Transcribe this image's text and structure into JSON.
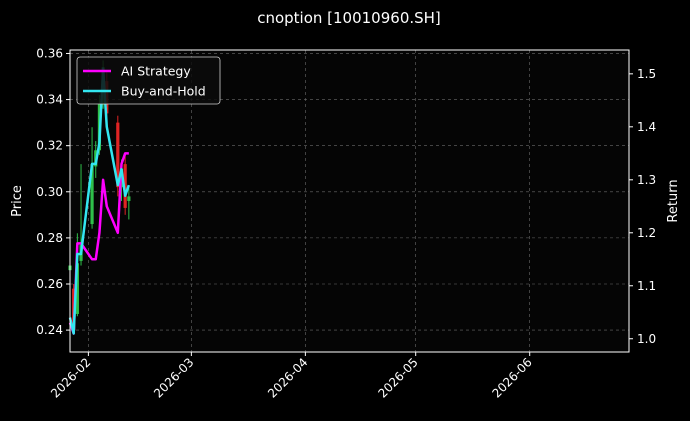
{
  "chart_data": {
    "type": "line",
    "title": "cnoption [10010960.SH]",
    "xlabel": "",
    "ylabel_left": "Price",
    "ylabel_right": "Return",
    "x_range": [
      "2026-01-27",
      "2026-06-28"
    ],
    "ylim_left": [
      0.2305,
      0.3615
    ],
    "ylim_right": [
      0.975,
      1.545
    ],
    "x_ticks": [
      "2026-02-01",
      "2026-03-01",
      "2026-04-01",
      "2026-05-01",
      "2026-06-01"
    ],
    "x_tick_labels": [
      "2026-02",
      "2026-03",
      "2026-04",
      "2026-05",
      "2026-06"
    ],
    "y_ticks_left": [
      0.24,
      0.26,
      0.28,
      0.3,
      0.32,
      0.34,
      0.36
    ],
    "y_tick_labels_left": [
      "0.24",
      "0.26",
      "0.28",
      "0.30",
      "0.32",
      "0.34",
      "0.36"
    ],
    "y_ticks_right": [
      1.0,
      1.1,
      1.2,
      1.3,
      1.4,
      1.5
    ],
    "y_tick_labels_right": [
      "1.0",
      "1.1",
      "1.2",
      "1.3",
      "1.4",
      "1.5"
    ],
    "grid": true,
    "legend_position": "top-left",
    "candles": [
      {
        "date": "2026-01-27",
        "open": 0.266,
        "close": 0.268,
        "high": 0.276,
        "low": 0.254
      },
      {
        "date": "2026-01-28",
        "open": 0.258,
        "close": 0.24,
        "high": 0.26,
        "low": 0.238
      },
      {
        "date": "2026-01-29",
        "open": 0.247,
        "close": 0.269,
        "high": 0.282,
        "low": 0.246
      },
      {
        "date": "2026-01-30",
        "open": 0.27,
        "close": 0.277,
        "high": 0.312,
        "low": 0.268
      },
      {
        "date": "2026-02-02",
        "open": 0.286,
        "close": 0.312,
        "high": 0.328,
        "low": 0.284
      },
      {
        "date": "2026-02-03",
        "open": 0.311,
        "close": 0.318,
        "high": 0.322,
        "low": 0.306
      },
      {
        "date": "2026-02-04",
        "open": 0.318,
        "close": 0.338,
        "high": 0.342,
        "low": 0.316
      },
      {
        "date": "2026-02-05",
        "open": 0.338,
        "close": 0.354,
        "high": 0.357,
        "low": 0.336
      },
      {
        "date": "2026-02-06",
        "open": 0.348,
        "close": 0.334,
        "high": 0.352,
        "low": 0.33
      },
      {
        "date": "2026-02-09",
        "open": 0.33,
        "close": 0.302,
        "high": 0.333,
        "low": 0.298
      },
      {
        "date": "2026-02-10",
        "open": 0.302,
        "close": 0.31,
        "high": 0.314,
        "low": 0.296
      },
      {
        "date": "2026-02-11",
        "open": 0.312,
        "close": 0.293,
        "high": 0.316,
        "low": 0.29
      },
      {
        "date": "2026-02-12",
        "open": 0.296,
        "close": 0.298,
        "high": 0.302,
        "low": 0.288
      }
    ],
    "series": [
      {
        "name": "AI Strategy",
        "color": "#ff00ff",
        "axis": "right",
        "x": [
          "2026-01-27",
          "2026-01-28",
          "2026-01-29",
          "2026-01-30",
          "2026-02-02",
          "2026-02-03",
          "2026-02-04",
          "2026-02-05",
          "2026-02-06",
          "2026-02-09",
          "2026-02-10",
          "2026-02-11",
          "2026-02-12"
        ],
        "y": [
          1.03,
          1.01,
          1.18,
          1.18,
          1.15,
          1.15,
          1.2,
          1.3,
          1.25,
          1.2,
          1.33,
          1.35,
          1.35
        ]
      },
      {
        "name": "Buy-and-Hold",
        "color": "#33e6f0",
        "axis": "right",
        "x": [
          "2026-01-27",
          "2026-01-28",
          "2026-01-29",
          "2026-01-30",
          "2026-02-02",
          "2026-02-03",
          "2026-02-04",
          "2026-02-05",
          "2026-02-06",
          "2026-02-09",
          "2026-02-10",
          "2026-02-11",
          "2026-02-12"
        ],
        "y": [
          1.04,
          1.01,
          1.16,
          1.16,
          1.33,
          1.33,
          1.37,
          1.51,
          1.4,
          1.29,
          1.32,
          1.27,
          1.29
        ]
      }
    ]
  }
}
